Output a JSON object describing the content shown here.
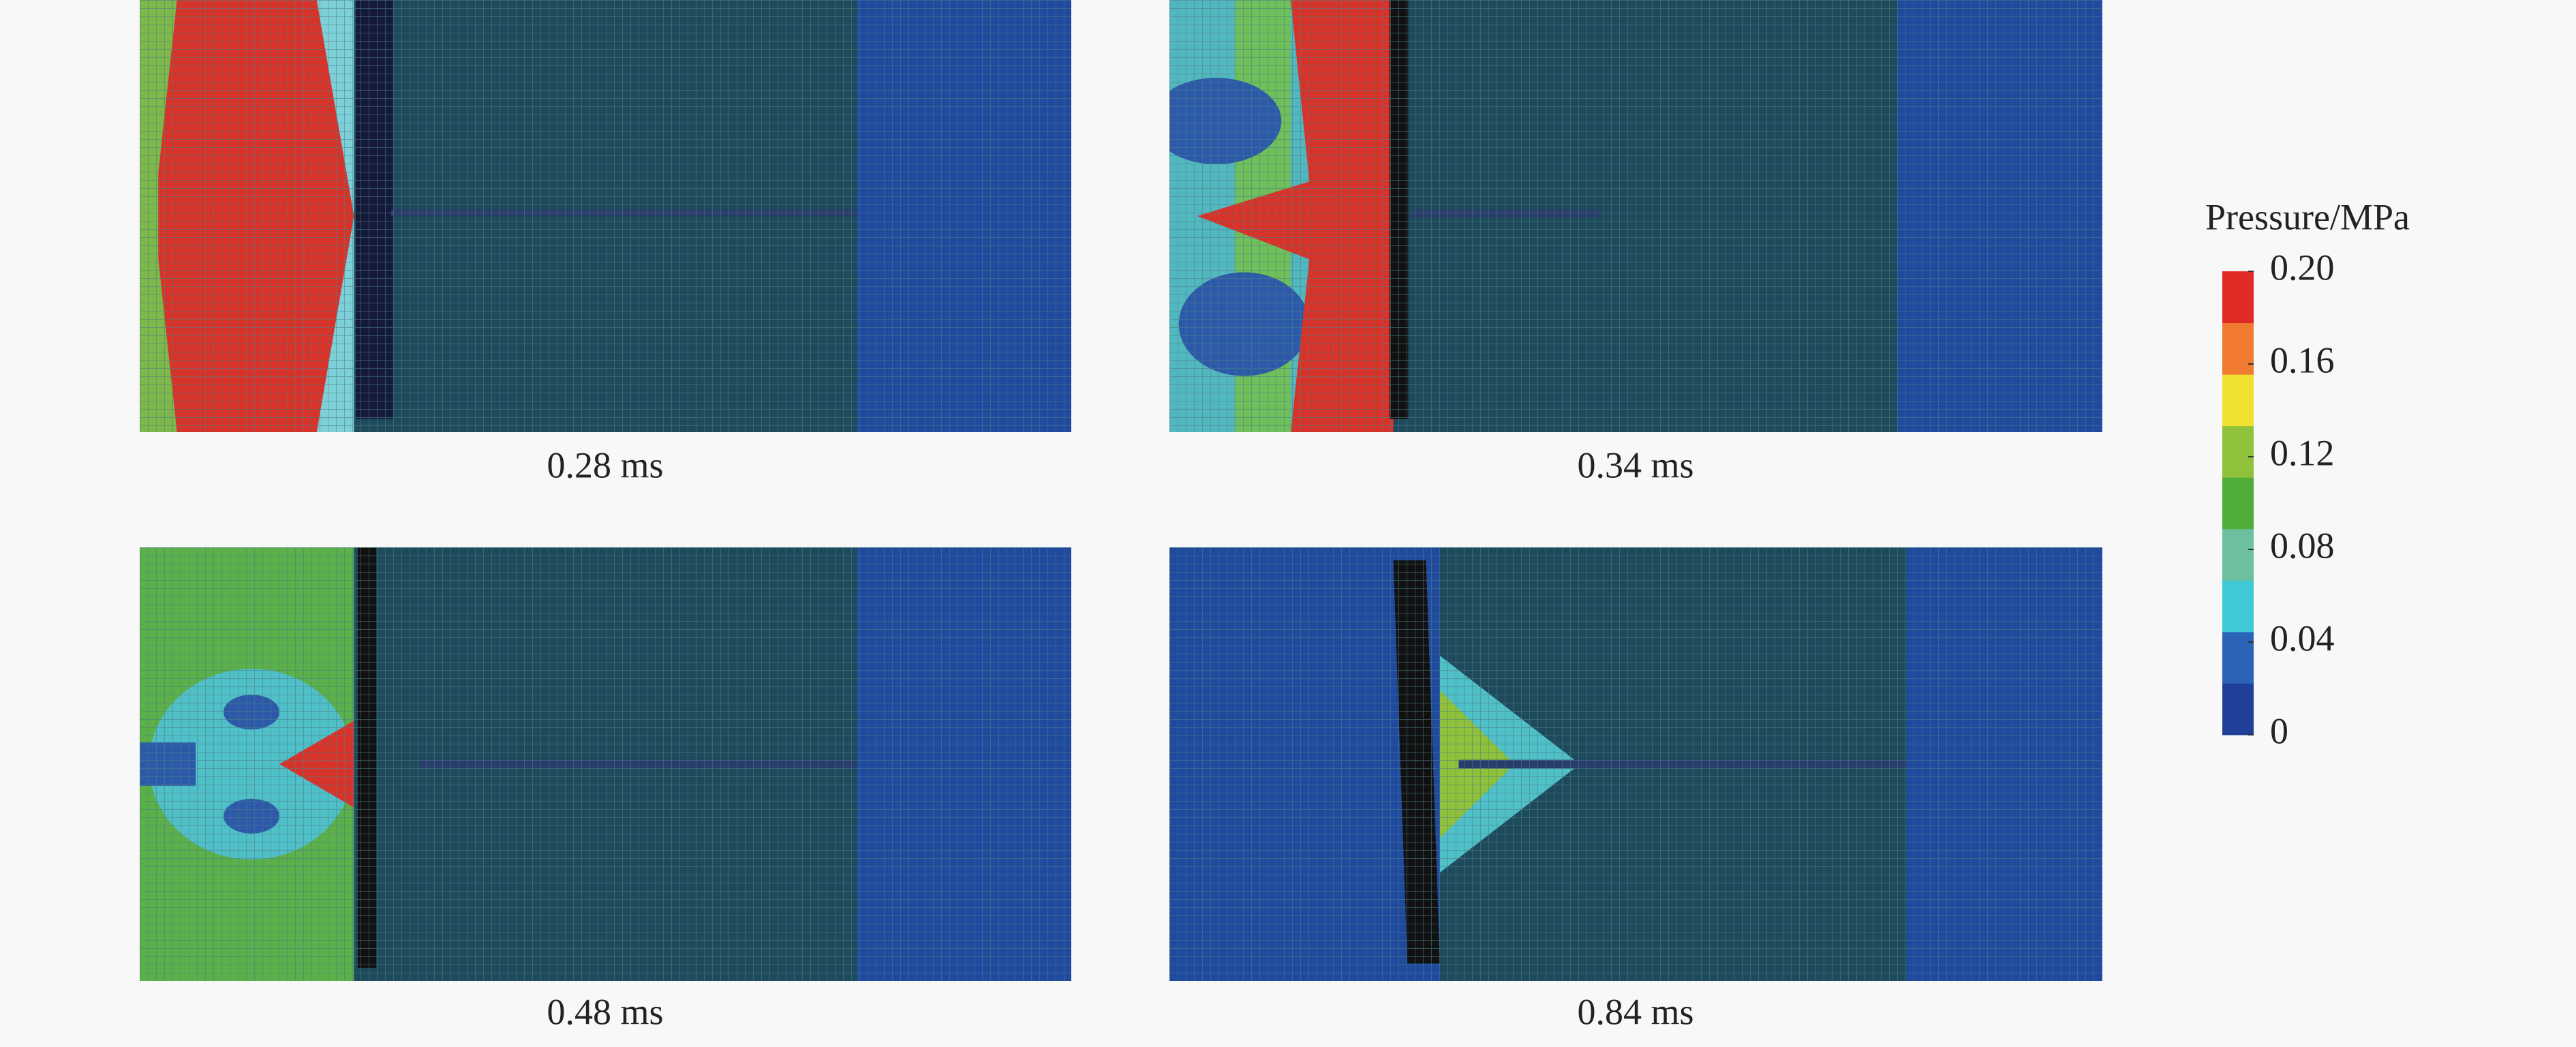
{
  "panels": [
    {
      "label": "0.28 ms"
    },
    {
      "label": "0.34 ms"
    },
    {
      "label": "0.48 ms"
    },
    {
      "label": "0.84 ms"
    }
  ],
  "colorbar": {
    "title": "Pressure/MPa",
    "range": [
      0,
      0.2
    ],
    "ticks": [
      {
        "value": 0.2,
        "label": "0.20"
      },
      0.16,
      0.12,
      0.08,
      0.04,
      0
    ],
    "colors": [
      "#1f3f99",
      "#2a63b8",
      "#3fc9d6",
      "#6cc0a0",
      "#4fae3a",
      "#8fc23a",
      "#f0e030",
      "#f07a30",
      "#e02a25"
    ]
  }
}
